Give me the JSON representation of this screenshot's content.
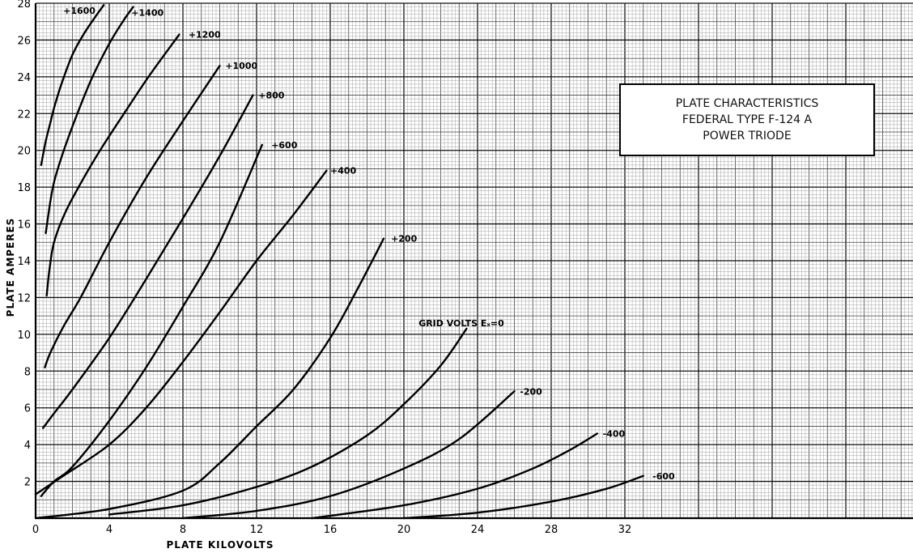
{
  "chart_data": {
    "type": "line",
    "title": [
      "PLATE CHARACTERISTICS",
      "FEDERAL TYPE F-124 A",
      "POWER TRIODE"
    ],
    "xlabel": "PLATE  KILOVOLTS",
    "ylabel": "PLATE  AMPERES",
    "xlim": [
      0,
      48
    ],
    "ylim": [
      0,
      28
    ],
    "xticks": [
      "0",
      "4",
      "8",
      "12",
      "16",
      "20",
      "24",
      "28",
      "32"
    ],
    "yticks": [
      "2",
      "4",
      "6",
      "8",
      "10",
      "12",
      "14",
      "16",
      "18",
      "20",
      "22",
      "24",
      "26",
      "28"
    ],
    "grid": true,
    "series": [
      {
        "name": "+1600",
        "label_x": 1.5,
        "label_y": 27.6,
        "x": [
          0.3,
          0.55,
          0.8,
          1.0,
          1.4,
          2.0,
          2.6,
          3.2,
          3.7
        ],
        "y": [
          19.2,
          20.5,
          21.5,
          22.3,
          23.6,
          25.2,
          26.3,
          27.2,
          27.9
        ]
      },
      {
        "name": "+1400",
        "label_x": 5.2,
        "label_y": 27.5,
        "x": [
          0.55,
          0.9,
          1.3,
          2.0,
          3.0,
          4.0,
          4.8,
          5.3
        ],
        "y": [
          15.5,
          17.8,
          19.3,
          21.3,
          23.8,
          25.8,
          27.1,
          27.8
        ]
      },
      {
        "name": "+1200",
        "label_x": 8.3,
        "label_y": 26.3,
        "x": [
          0.6,
          0.75,
          1.0,
          1.6,
          2.5,
          3.5,
          4.8,
          6.2,
          7.8
        ],
        "y": [
          12.1,
          13.5,
          15.0,
          16.6,
          18.3,
          20.0,
          22.0,
          24.1,
          26.3
        ]
      },
      {
        "name": "+1000",
        "label_x": 10.3,
        "label_y": 24.6,
        "x": [
          0.5,
          0.8,
          1.5,
          2.5,
          4.0,
          6.0,
          8.0,
          10.0
        ],
        "y": [
          8.2,
          9.0,
          10.4,
          12.1,
          15.0,
          18.5,
          21.6,
          24.6
        ]
      },
      {
        "name": "+800",
        "label_x": 12.1,
        "label_y": 23.0,
        "x": [
          0.4,
          1.0,
          2.0,
          4.0,
          6.0,
          8.0,
          10.0,
          11.8
        ],
        "y": [
          4.9,
          5.7,
          7.0,
          9.8,
          13.0,
          16.3,
          19.7,
          23.0
        ]
      },
      {
        "name": "+600",
        "label_x": 12.8,
        "label_y": 20.3,
        "x": [
          0.3,
          1.0,
          2.0,
          4.0,
          6.0,
          8.0,
          10.0,
          12.3
        ],
        "y": [
          1.2,
          2.0,
          2.8,
          5.3,
          8.2,
          11.5,
          15.0,
          20.3
        ]
      },
      {
        "name": "+400",
        "label_x": 16.0,
        "label_y": 18.9,
        "x": [
          0.0,
          1.5,
          4.0,
          6.0,
          8.0,
          10.0,
          12.0,
          14.0,
          15.8
        ],
        "y": [
          1.3,
          2.3,
          4.0,
          6.0,
          8.5,
          11.2,
          14.0,
          16.5,
          18.9
        ]
      },
      {
        "name": "+200",
        "label_x": 19.3,
        "label_y": 15.2,
        "x": [
          0.0,
          4.0,
          8.0,
          10.0,
          12.0,
          14.0,
          16.0,
          17.5,
          18.9
        ],
        "y": [
          0.0,
          0.5,
          1.5,
          3.0,
          5.0,
          7.0,
          9.8,
          12.5,
          15.2
        ]
      },
      {
        "name": "GRID VOLTS Eₓ=0",
        "label_x": 20.8,
        "label_y": 10.6,
        "x": [
          4.0,
          8.0,
          12.0,
          15.0,
          18.0,
          20.0,
          22.0,
          23.4
        ],
        "y": [
          0.2,
          0.7,
          1.7,
          2.8,
          4.5,
          6.2,
          8.3,
          10.3
        ]
      },
      {
        "name": "-200",
        "label_x": 26.3,
        "label_y": 6.9,
        "x": [
          8.0,
          12.0,
          16.0,
          20.0,
          23.0,
          26.0
        ],
        "y": [
          0.0,
          0.4,
          1.2,
          2.7,
          4.3,
          6.9
        ]
      },
      {
        "name": "-400",
        "label_x": 30.8,
        "label_y": 4.6,
        "x": [
          15.0,
          20.0,
          24.0,
          27.0,
          29.0,
          30.5
        ],
        "y": [
          0.0,
          0.7,
          1.6,
          2.7,
          3.7,
          4.6
        ]
      },
      {
        "name": "-600",
        "label_x": 33.5,
        "label_y": 2.3,
        "x": [
          20.0,
          24.0,
          28.0,
          31.0,
          33.0
        ],
        "y": [
          0.0,
          0.3,
          0.9,
          1.6,
          2.3
        ]
      }
    ]
  }
}
